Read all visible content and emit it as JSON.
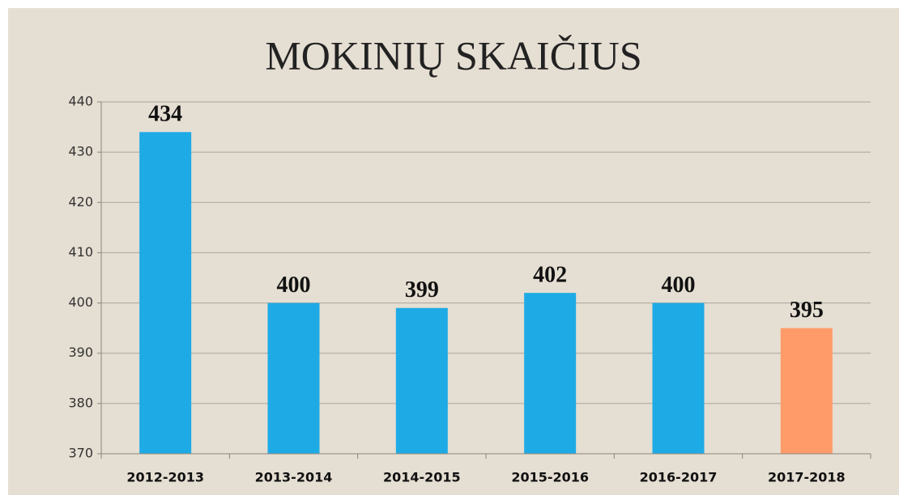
{
  "chart_data": {
    "type": "bar",
    "title": "MOKINIŲ SKAIČIUS",
    "categories": [
      "2012-2013",
      "2013-2014",
      "2014-2015",
      "2015-2016",
      "2016-2017",
      "2017-2018"
    ],
    "values": [
      434,
      400,
      399,
      402,
      400,
      395
    ],
    "colors": [
      "#1eabe5",
      "#1eabe5",
      "#1eabe5",
      "#1eabe5",
      "#1eabe5",
      "#ff9b69"
    ],
    "ylim": [
      370,
      440
    ],
    "yticks": [
      370,
      380,
      390,
      400,
      410,
      420,
      430,
      440
    ],
    "grid": true
  }
}
